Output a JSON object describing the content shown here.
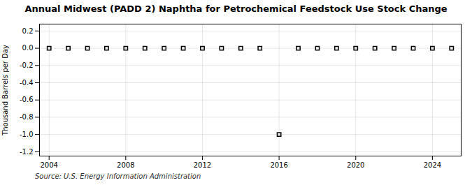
{
  "chart_data": {
    "type": "scatter",
    "title": "Annual Midwest (PADD 2) Naphtha for Petrochemical Feedstock Use Stock Change",
    "ylabel": "Thousand Barrels per Day",
    "caption": "Source: U.S. Energy Information Administration",
    "x": [
      2004,
      2005,
      2006,
      2007,
      2008,
      2009,
      2010,
      2011,
      2012,
      2013,
      2014,
      2015,
      2016,
      2017,
      2018,
      2019,
      2020,
      2021,
      2022,
      2023,
      2024,
      2025
    ],
    "values": [
      0.0,
      0.0,
      0.0,
      0.0,
      0.0,
      0.0,
      0.0,
      0.0,
      0.0,
      0.0,
      0.0,
      0.0,
      -1.0,
      0.0,
      0.0,
      0.0,
      0.0,
      0.0,
      0.0,
      0.0,
      0.0,
      0.0
    ],
    "xlim": [
      2003.5,
      2025.5
    ],
    "xticks": [
      2004,
      2008,
      2012,
      2016,
      2020,
      2024
    ],
    "ylim": [
      -1.25,
      0.28
    ],
    "yticks": [
      0.2,
      {
        "value": 0.0,
        "label": "0.0"
      },
      -0.2,
      -0.4,
      -0.6,
      -0.8,
      {
        "value": -1.0,
        "label": "-1.0"
      },
      -1.2
    ],
    "marker": "square",
    "grid": true
  }
}
